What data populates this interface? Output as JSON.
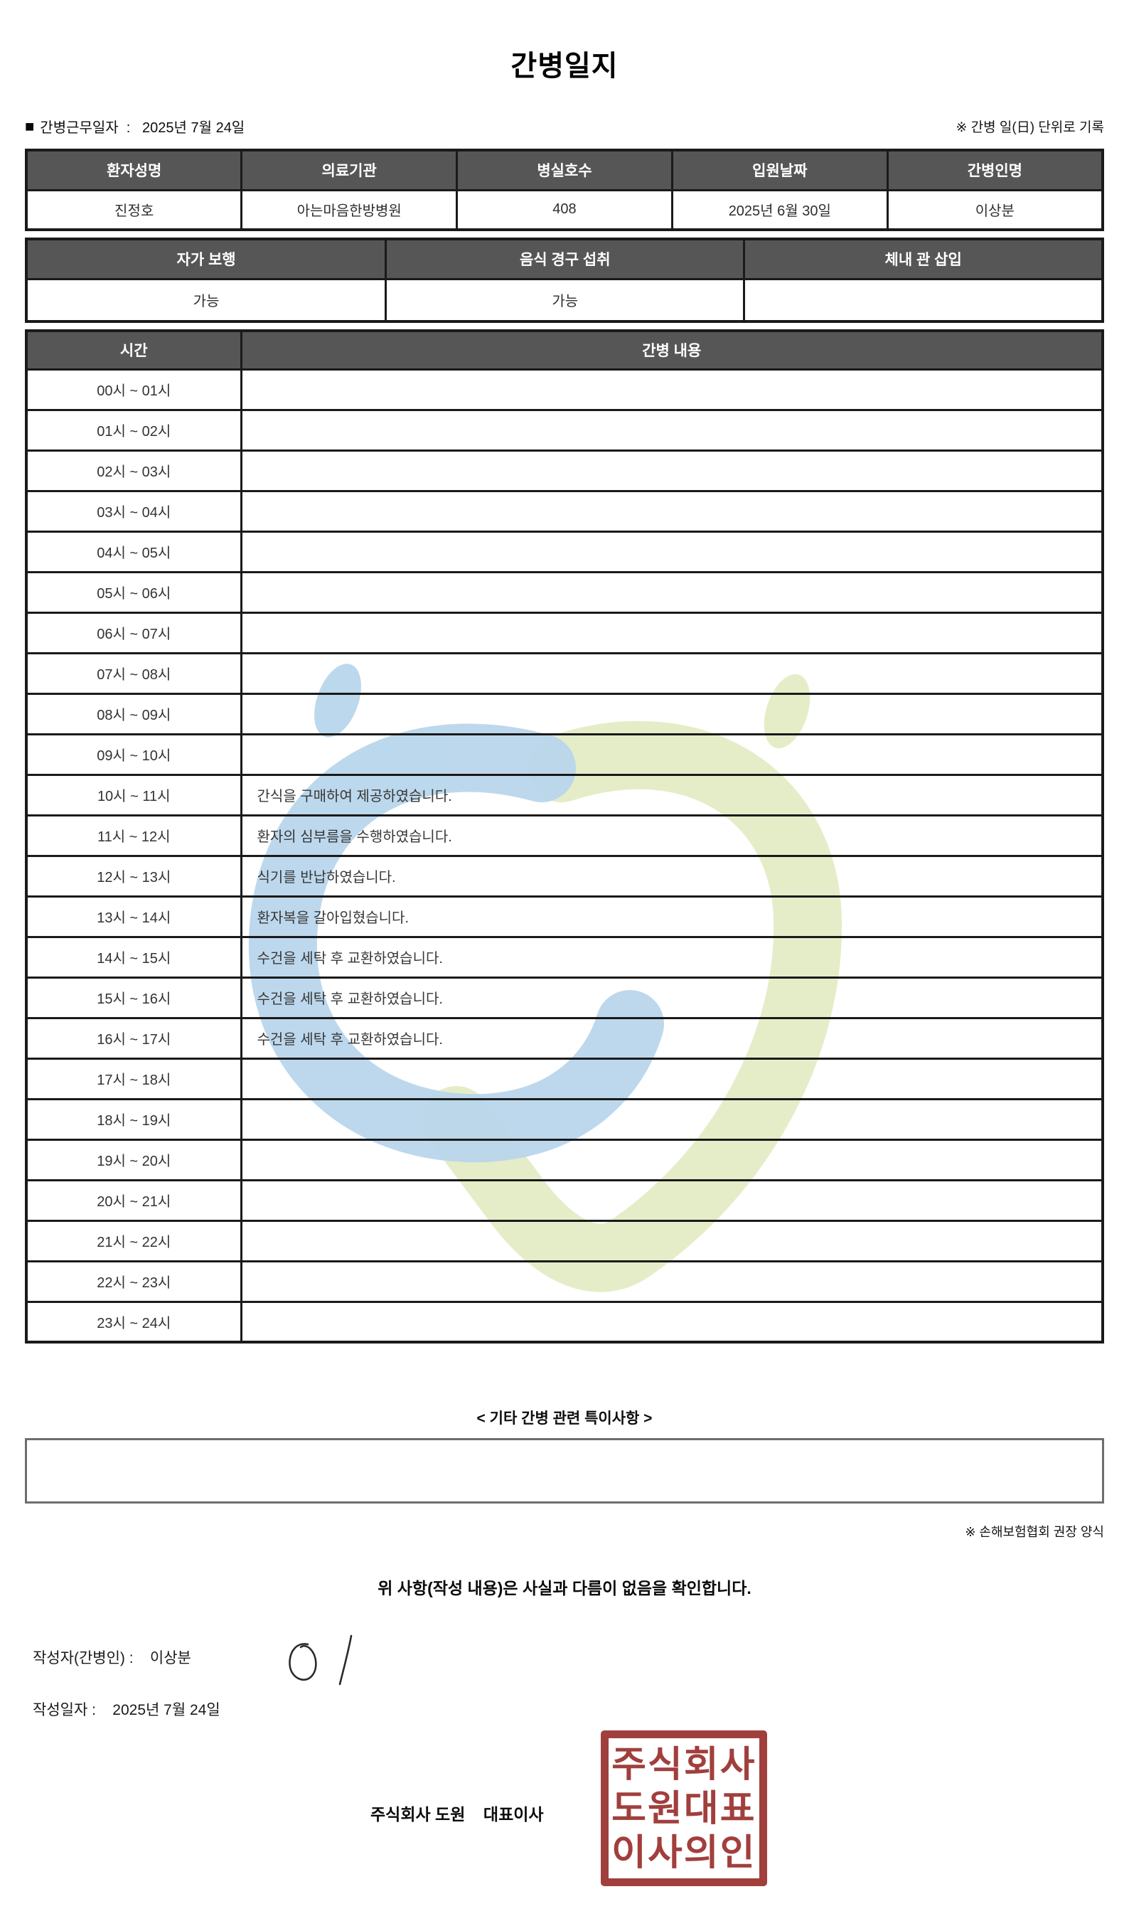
{
  "title": "간병일지",
  "meta": {
    "bullet": "■",
    "work_date_line": "간병근무일자  :   2025년 7월 24일",
    "unit_note": "※ 간병 일(日) 단위로 기록"
  },
  "patient_table": {
    "headers": [
      "환자성명",
      "의료기관",
      "병실호수",
      "입원날짜",
      "간병인명"
    ],
    "values": [
      "진정호",
      "아는마음한방병원",
      "408",
      "2025년 6월 30일",
      "이상분"
    ]
  },
  "status_table": {
    "headers": [
      "자가 보행",
      "음식 경구 섭취",
      "체내 관 삽입"
    ],
    "values": [
      "가능",
      "가능",
      ""
    ]
  },
  "schedule_table": {
    "time_header": "시간",
    "content_header": "간병 내용",
    "rows": [
      {
        "time": "00시 ~ 01시",
        "content": ""
      },
      {
        "time": "01시 ~ 02시",
        "content": ""
      },
      {
        "time": "02시 ~ 03시",
        "content": ""
      },
      {
        "time": "03시 ~ 04시",
        "content": ""
      },
      {
        "time": "04시 ~ 05시",
        "content": ""
      },
      {
        "time": "05시 ~ 06시",
        "content": ""
      },
      {
        "time": "06시 ~ 07시",
        "content": ""
      },
      {
        "time": "07시 ~ 08시",
        "content": ""
      },
      {
        "time": "08시 ~ 09시",
        "content": ""
      },
      {
        "time": "09시 ~ 10시",
        "content": ""
      },
      {
        "time": "10시 ~ 11시",
        "content": "간식을 구매하여 제공하였습니다."
      },
      {
        "time": "11시 ~ 12시",
        "content": "환자의 심부름을 수행하였습니다."
      },
      {
        "time": "12시 ~ 13시",
        "content": "식기를 반납하였습니다."
      },
      {
        "time": "13시 ~ 14시",
        "content": "환자복을 갈아입혔습니다."
      },
      {
        "time": "14시 ~ 15시",
        "content": "수건을 세탁 후 교환하였습니다."
      },
      {
        "time": "15시 ~ 16시",
        "content": "수건을 세탁 후 교환하였습니다."
      },
      {
        "time": "16시 ~ 17시",
        "content": "수건을 세탁 후 교환하였습니다."
      },
      {
        "time": "17시 ~ 18시",
        "content": ""
      },
      {
        "time": "18시 ~ 19시",
        "content": ""
      },
      {
        "time": "19시 ~ 20시",
        "content": ""
      },
      {
        "time": "20시 ~ 21시",
        "content": ""
      },
      {
        "time": "21시 ~ 22시",
        "content": ""
      },
      {
        "time": "22시 ~ 23시",
        "content": ""
      },
      {
        "time": "23시 ~ 24시",
        "content": ""
      }
    ]
  },
  "notes": {
    "heading": "< 기타 간병 관련 특이사항 >",
    "content": "",
    "form_note": "※ 손해보험협회 권장 양식"
  },
  "footer": {
    "confirmation": "위 사항(작성 내용)은 사실과 다름이 없음을 확인합니다.",
    "writer_line": "작성자(간병인) :    이상분",
    "date_line": "작성일자 :    2025년 7월 24일",
    "company_line": "주식회사 도원    대표이사",
    "stamp_lines": [
      "주식회사",
      "도원대표",
      "이사의인"
    ]
  },
  "colors": {
    "header_bg": "#565656",
    "table_border": "#1a1a1a",
    "notes_box_border": "#6e6e6e",
    "stamp_red": "#9c3533",
    "watermark_blue": "#b7d5eb",
    "watermark_green": "#e5edc8"
  }
}
